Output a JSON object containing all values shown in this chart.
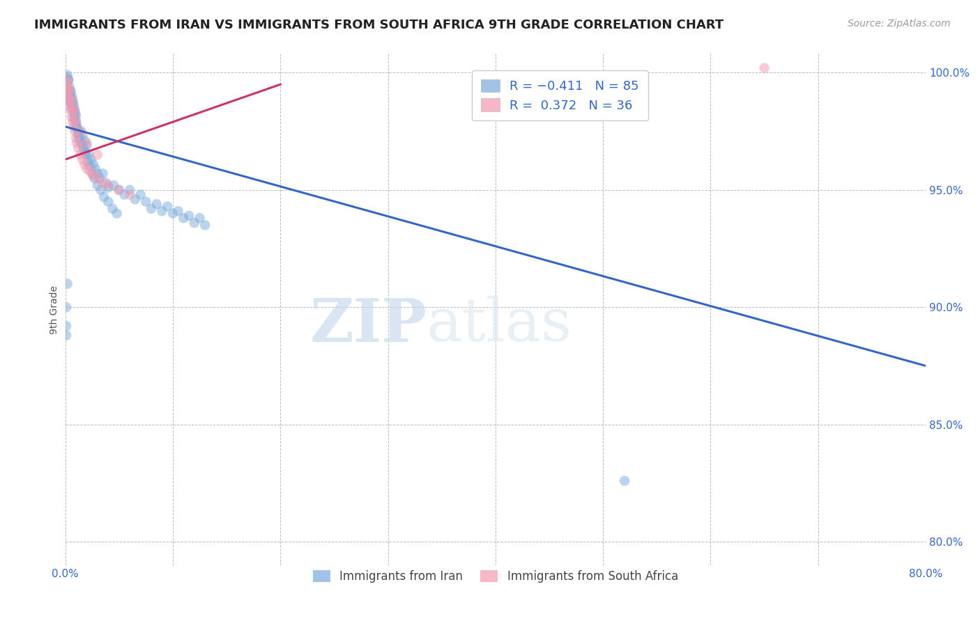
{
  "title": "IMMIGRANTS FROM IRAN VS IMMIGRANTS FROM SOUTH AFRICA 9TH GRADE CORRELATION CHART",
  "source": "Source: ZipAtlas.com",
  "ylabel": "9th Grade",
  "xlim": [
    0.0,
    0.8
  ],
  "ylim": [
    0.79,
    1.008
  ],
  "xticks": [
    0.0,
    0.1,
    0.2,
    0.3,
    0.4,
    0.5,
    0.6,
    0.7,
    0.8
  ],
  "xticklabels": [
    "0.0%",
    "",
    "",
    "",
    "",
    "",
    "",
    "",
    "80.0%"
  ],
  "yticks": [
    0.8,
    0.85,
    0.9,
    0.95,
    1.0
  ],
  "yticklabels": [
    "80.0%",
    "85.0%",
    "90.0%",
    "95.0%",
    "100.0%"
  ],
  "iran_color": "#7aacdc",
  "sa_color": "#f599b0",
  "iran_label": "Immigrants from Iran",
  "sa_label": "Immigrants from South Africa",
  "watermark_zip": "ZIP",
  "watermark_atlas": "atlas",
  "iran_trend_x": [
    0.0,
    0.8
  ],
  "iran_trend_y": [
    0.977,
    0.875
  ],
  "sa_trend_x": [
    0.0,
    0.2
  ],
  "sa_trend_y": [
    0.963,
    0.995
  ],
  "iran_points_x": [
    0.001,
    0.002,
    0.002,
    0.003,
    0.003,
    0.004,
    0.004,
    0.005,
    0.005,
    0.006,
    0.006,
    0.007,
    0.007,
    0.008,
    0.008,
    0.009,
    0.009,
    0.01,
    0.01,
    0.011,
    0.012,
    0.013,
    0.014,
    0.015,
    0.016,
    0.017,
    0.018,
    0.019,
    0.02,
    0.022,
    0.024,
    0.026,
    0.028,
    0.03,
    0.032,
    0.035,
    0.038,
    0.04,
    0.045,
    0.05,
    0.055,
    0.06,
    0.065,
    0.07,
    0.075,
    0.08,
    0.085,
    0.09,
    0.095,
    0.1,
    0.105,
    0.11,
    0.115,
    0.12,
    0.125,
    0.13,
    0.002,
    0.003,
    0.004,
    0.005,
    0.006,
    0.007,
    0.008,
    0.009,
    0.01,
    0.011,
    0.012,
    0.013,
    0.015,
    0.017,
    0.019,
    0.021,
    0.023,
    0.025,
    0.027,
    0.03,
    0.033,
    0.036,
    0.04,
    0.044,
    0.048,
    0.001,
    0.52,
    0.001,
    0.001,
    0.002
  ],
  "iran_points_y": [
    0.998,
    0.996,
    0.993,
    0.991,
    0.997,
    0.99,
    0.988,
    0.992,
    0.987,
    0.99,
    0.985,
    0.988,
    0.984,
    0.986,
    0.981,
    0.984,
    0.98,
    0.982,
    0.978,
    0.976,
    0.974,
    0.972,
    0.975,
    0.97,
    0.973,
    0.968,
    0.971,
    0.966,
    0.969,
    0.965,
    0.963,
    0.961,
    0.959,
    0.957,
    0.955,
    0.957,
    0.953,
    0.951,
    0.952,
    0.95,
    0.948,
    0.95,
    0.946,
    0.948,
    0.945,
    0.942,
    0.944,
    0.941,
    0.943,
    0.94,
    0.941,
    0.938,
    0.939,
    0.936,
    0.938,
    0.935,
    0.999,
    0.997,
    0.994,
    0.992,
    0.989,
    0.987,
    0.984,
    0.982,
    0.979,
    0.977,
    0.975,
    0.972,
    0.97,
    0.967,
    0.965,
    0.962,
    0.96,
    0.957,
    0.955,
    0.952,
    0.95,
    0.947,
    0.945,
    0.942,
    0.94,
    0.892,
    0.826,
    0.9,
    0.888,
    0.91
  ],
  "sa_points_x": [
    0.001,
    0.002,
    0.002,
    0.003,
    0.003,
    0.004,
    0.005,
    0.005,
    0.006,
    0.007,
    0.007,
    0.008,
    0.009,
    0.01,
    0.011,
    0.012,
    0.014,
    0.016,
    0.018,
    0.02,
    0.023,
    0.026,
    0.03,
    0.035,
    0.04,
    0.05,
    0.06,
    0.002,
    0.004,
    0.006,
    0.008,
    0.01,
    0.015,
    0.02,
    0.03,
    0.65
  ],
  "sa_points_y": [
    0.997,
    0.994,
    0.991,
    0.993,
    0.989,
    0.986,
    0.988,
    0.984,
    0.981,
    0.984,
    0.979,
    0.977,
    0.975,
    0.972,
    0.97,
    0.968,
    0.965,
    0.963,
    0.961,
    0.959,
    0.958,
    0.956,
    0.955,
    0.953,
    0.952,
    0.95,
    0.948,
    0.996,
    0.992,
    0.988,
    0.984,
    0.98,
    0.975,
    0.97,
    0.965,
    1.002
  ]
}
